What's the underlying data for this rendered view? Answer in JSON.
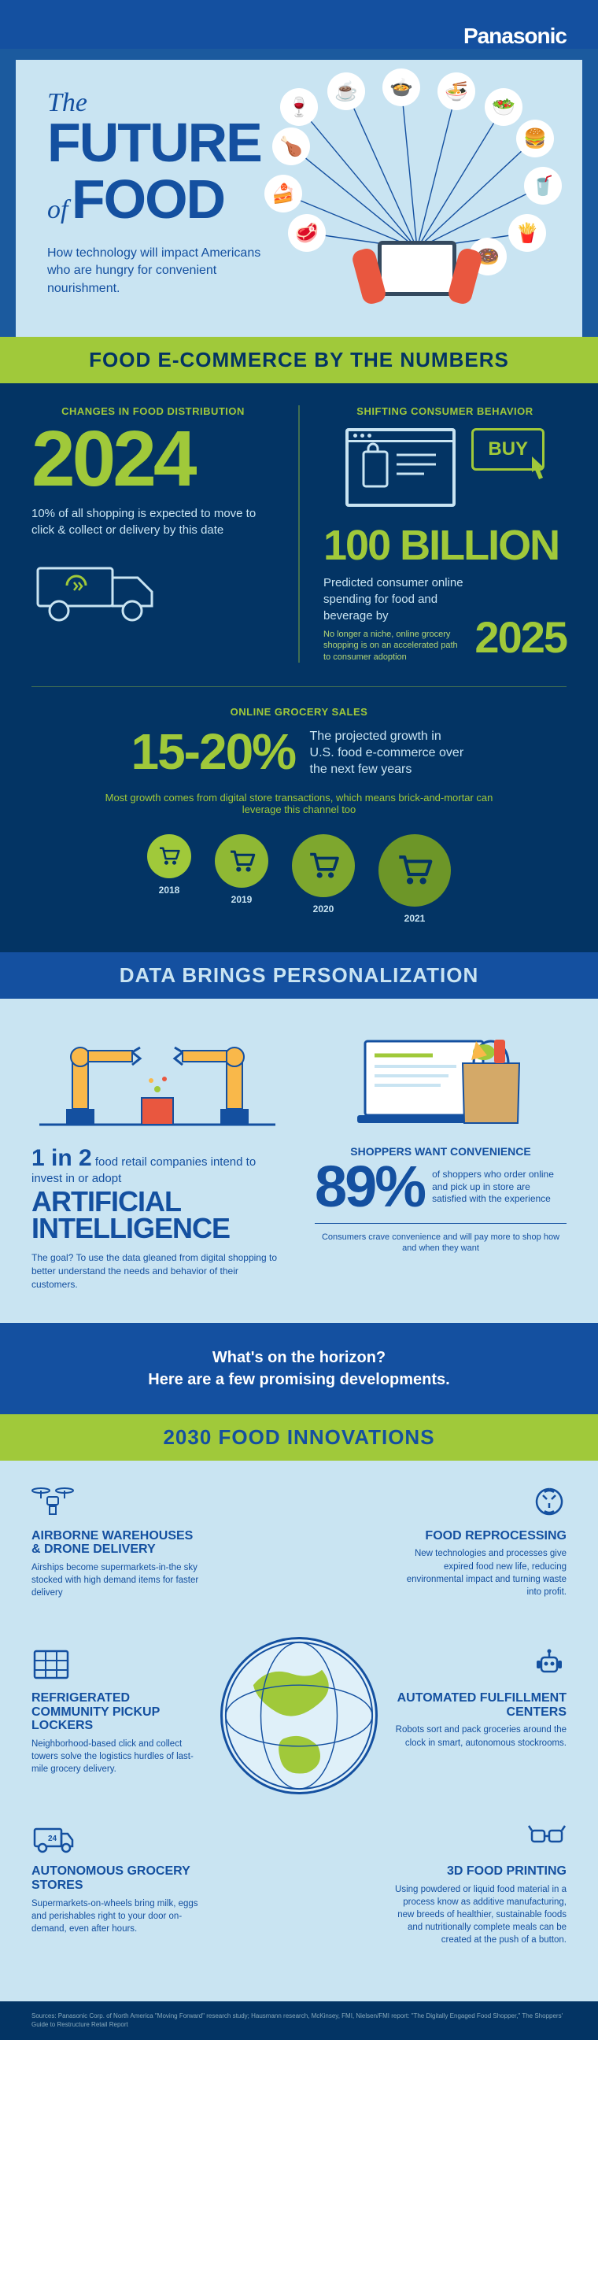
{
  "brand": "Panasonic",
  "hero": {
    "the": "The",
    "future": "FUTURE",
    "of": "of",
    "food": "FOOD",
    "subtitle": "How technology will impact Americans who are hungry for convenient nourishment."
  },
  "colors": {
    "deep_navy": "#033464",
    "blue": "#1450a0",
    "light_blue": "#c9e4f2",
    "lime": "#a0c93a",
    "pale": "#dff0f9"
  },
  "section1": {
    "banner": "FOOD E-COMMERCE BY THE NUMBERS",
    "left": {
      "label": "CHANGES IN FOOD DISTRIBUTION",
      "year": "2024",
      "text": "10% of all shopping is expected to move to click & collect or delivery by this date"
    },
    "right": {
      "label": "SHIFTING CONSUMER BEHAVIOR",
      "buy": "BUY",
      "amount": "100 BILLION",
      "text": "Predicted consumer online spending for food and beverage by",
      "year": "2025",
      "subtext": "No longer a niche, online grocery shopping is on an accelerated path to consumer adoption"
    },
    "growth": {
      "label": "ONLINE GROCERY SALES",
      "pct": "15-20%",
      "text": "The projected growth in U.S. food e-commerce over the next few years",
      "subtext": "Most growth comes from digital store transactions, which means brick-and-mortar can leverage this channel too"
    },
    "carts": [
      {
        "year": "2018",
        "size": 56,
        "bg": "#a0c93a"
      },
      {
        "year": "2019",
        "size": 68,
        "bg": "#8fb834"
      },
      {
        "year": "2020",
        "size": 80,
        "bg": "#7ea72e"
      },
      {
        "year": "2021",
        "size": 92,
        "bg": "#6d9628"
      }
    ]
  },
  "section2": {
    "banner": "DATA BRINGS PERSONALIZATION",
    "ai": {
      "prefix_num": "1 in 2",
      "prefix_text": "food retail companies intend to invest in or adopt",
      "title": "ARTIFICIAL INTELLIGENCE",
      "goal": "The goal? To use the data gleaned from digital shopping to better understand the needs and behavior of their customers."
    },
    "convenience": {
      "label": "SHOPPERS WANT CONVENIENCE",
      "pct": "89%",
      "text": "of shoppers who order online and pick up in store are satisfied with the experience",
      "subtext": "Consumers crave convenience and will pay more to shop how and when they want"
    }
  },
  "horizon": {
    "line1": "What's on the horizon?",
    "line2": "Here are a few promising developments."
  },
  "section3": {
    "banner": "2030 FOOD INNOVATIONS",
    "items": [
      {
        "title": "AIRBORNE WAREHOUSES & DRONE DELIVERY",
        "desc": "Airships become supermarkets-in-the sky stocked with high demand items for faster delivery",
        "side": "left"
      },
      {
        "title": "FOOD REPROCESSING",
        "desc": "New technologies and processes give expired food new life, reducing environmental impact and turning waste into profit.",
        "side": "right"
      },
      {
        "title": "REFRIGERATED COMMUNITY PICKUP LOCKERS",
        "desc": "Neighborhood-based click and collect towers solve the logistics hurdles of last-mile grocery delivery.",
        "side": "left"
      },
      {
        "title": "AUTOMATED FULFILLMENT CENTERS",
        "desc": "Robots sort and pack groceries around the clock in smart, autonomous stockrooms.",
        "side": "right"
      },
      {
        "title": "AUTONOMOUS GROCERY STORES",
        "desc": "Supermarkets-on-wheels bring milk, eggs and perishables right to your door on-demand, even after hours.",
        "side": "left"
      },
      {
        "title": "3D FOOD PRINTING",
        "desc": "Using powdered or liquid food material in a process know as additive manufacturing, new breeds of healthier, sustainable foods and nutritionally complete meals can be created at the push of a button.",
        "side": "right"
      }
    ]
  },
  "footer": "Sources: Panasonic Corp. of North America \"Moving Forward\" research study; Hausmann research, McKinsey, FMI, Nielsen/FMI report: \"The Digitally Engaged Food Shopper,\" The Shoppers' Guide to Restructure Retail Report"
}
